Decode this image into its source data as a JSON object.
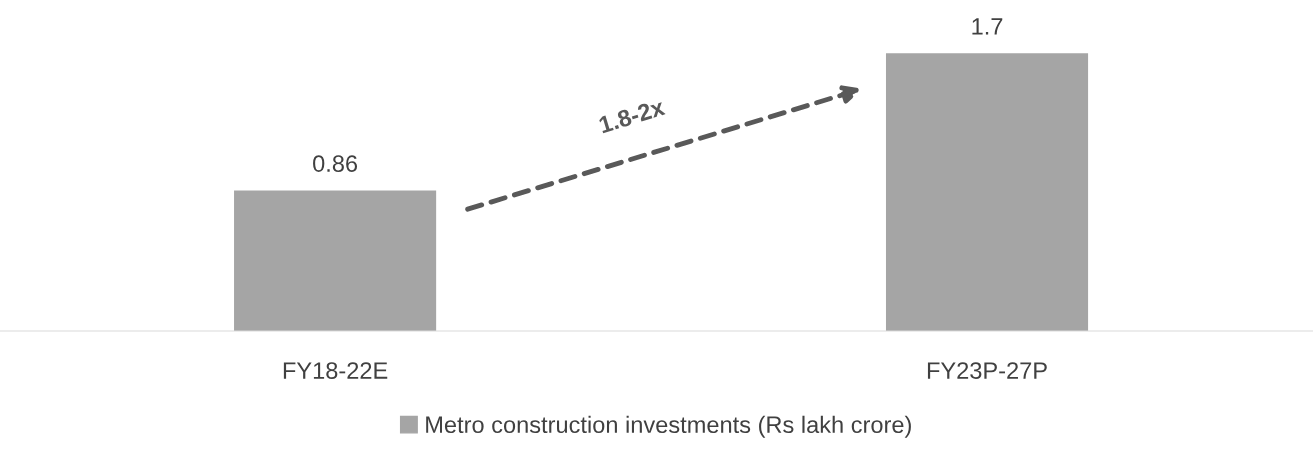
{
  "chart_data": {
    "type": "bar",
    "categories": [
      "FY18-22E",
      "FY23P-27P"
    ],
    "series": [
      {
        "name": "Metro construction investments (Rs lakh crore)",
        "color": "#a5a5a5",
        "values": [
          0.86,
          1.7
        ]
      }
    ],
    "data_labels": true,
    "annotations": [
      "1.8-2x"
    ],
    "legend": "bottom",
    "grid": false
  }
}
